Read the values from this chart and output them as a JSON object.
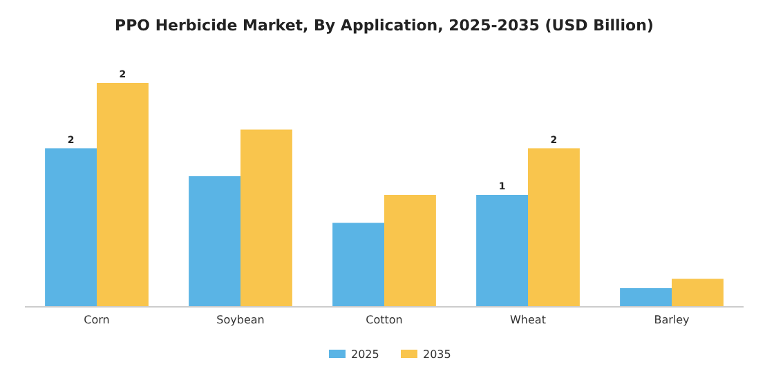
{
  "chart_data": {
    "type": "bar",
    "title": "PPO Herbicide Market, By Application, 2025-2035 (USD Billion)",
    "categories": [
      "Corn",
      "Soybean",
      "Cotton",
      "Wheat",
      "Barley"
    ],
    "legend": "bottom",
    "series": [
      {
        "name": "2025",
        "color": "#5ab4e5",
        "values": [
          1.7,
          1.4,
          0.9,
          1.2,
          0.2
        ],
        "value_labels": [
          "2",
          null,
          null,
          "1",
          null
        ]
      },
      {
        "name": "2035",
        "color": "#f9c54d",
        "values": [
          2.4,
          1.9,
          1.2,
          1.7,
          0.3
        ],
        "value_labels": [
          "2",
          null,
          null,
          "2",
          null
        ]
      }
    ]
  }
}
